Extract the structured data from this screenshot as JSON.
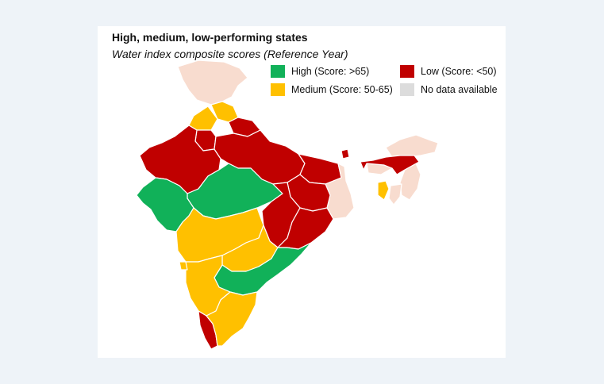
{
  "header": {
    "title": "High, medium, low-performing states",
    "subtitle": "Water index composite scores (Reference Year)"
  },
  "legend": {
    "high": {
      "label": "High (Score: >65)",
      "color": "#11b159"
    },
    "medium": {
      "label": "Medium (Score: 50-65)",
      "color": "#ffc000"
    },
    "low": {
      "label": "Low (Score: <50)",
      "color": "#c00000"
    },
    "nodata": {
      "label": "No data available",
      "color": "#dcdcdc"
    }
  },
  "map_colors": {
    "high": "#11b159",
    "medium": "#ffc000",
    "low": "#c00000",
    "excluded": "#f8dccf"
  }
}
